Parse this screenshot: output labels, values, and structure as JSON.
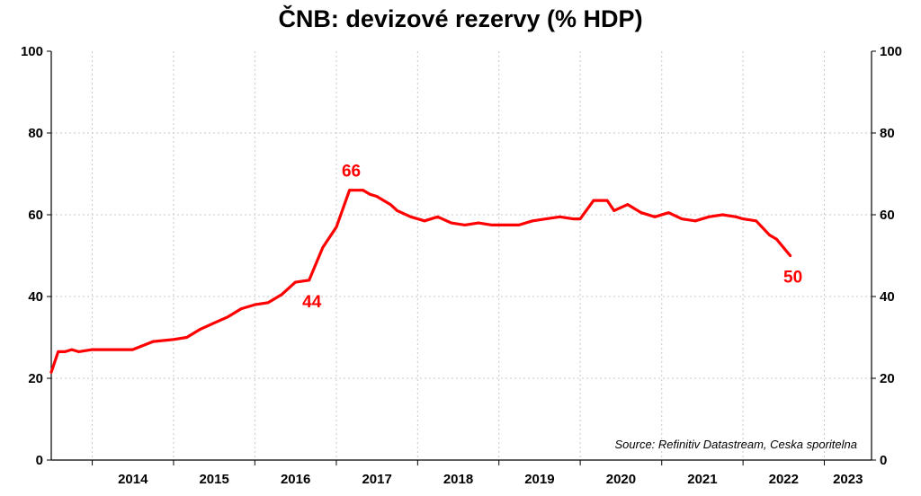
{
  "chart_data": {
    "type": "line",
    "title": "ČNB: devizové rezervy (% HDP)",
    "ylim": [
      0,
      100
    ],
    "yticks": [
      0,
      20,
      40,
      60,
      80,
      100
    ],
    "xlim": [
      "2013-07-01",
      "2023-08-01"
    ],
    "xtick_labels": [
      "2014",
      "2015",
      "2016",
      "2017",
      "2018",
      "2019",
      "2020",
      "2021",
      "2022",
      "2023"
    ],
    "grid": true,
    "line_color": "#ff0000",
    "series": [
      {
        "name": "",
        "x": [
          "2013-07-01",
          "2013-08-01",
          "2013-09-01",
          "2013-10-01",
          "2013-11-01",
          "2014-01-01",
          "2014-04-01",
          "2014-07-01",
          "2014-10-01",
          "2015-01-01",
          "2015-03-01",
          "2015-05-01",
          "2015-07-01",
          "2015-09-01",
          "2015-11-01",
          "2016-01-01",
          "2016-03-01",
          "2016-05-01",
          "2016-07-01",
          "2016-09-01",
          "2016-11-01",
          "2017-01-01",
          "2017-03-01",
          "2017-05-01",
          "2017-06-01",
          "2017-07-01",
          "2017-08-01",
          "2017-09-01",
          "2017-10-01",
          "2017-12-01",
          "2018-02-01",
          "2018-04-01",
          "2018-06-01",
          "2018-08-01",
          "2018-10-01",
          "2018-12-01",
          "2019-02-01",
          "2019-04-01",
          "2019-06-01",
          "2019-08-01",
          "2019-10-01",
          "2019-12-01",
          "2020-01-01",
          "2020-03-01",
          "2020-05-01",
          "2020-06-01",
          "2020-08-01",
          "2020-10-01",
          "2020-12-01",
          "2021-02-01",
          "2021-04-01",
          "2021-06-01",
          "2021-08-01",
          "2021-10-01",
          "2021-12-01",
          "2022-01-01",
          "2022-03-01",
          "2022-05-01",
          "2022-06-01",
          "2022-08-01"
        ],
        "y": [
          21.5,
          26.5,
          26.5,
          27,
          26.5,
          27,
          27,
          27,
          29,
          29.5,
          30,
          32,
          33.5,
          35,
          37,
          38,
          38.5,
          40.5,
          43.5,
          44,
          52,
          57,
          66,
          66,
          65,
          64.5,
          63.5,
          62.5,
          61,
          59.5,
          58.5,
          59.5,
          58,
          57.5,
          58,
          57.5,
          57.5,
          57.5,
          58.5,
          59,
          59.5,
          59,
          59,
          63.5,
          63.5,
          61,
          62.5,
          60.5,
          59.5,
          60.5,
          59,
          58.5,
          59.5,
          60,
          59.5,
          59,
          58.5,
          55,
          54,
          50
        ]
      }
    ],
    "annotations": [
      {
        "label": "66",
        "x": "2017-03-01",
        "y": 66
      },
      {
        "label": "44",
        "x": "2016-09-01",
        "y": 44
      },
      {
        "label": "50",
        "x": "2022-08-01",
        "y": 50
      }
    ],
    "source": "Source: Refinitiv Datastream, Ceska sporitelna"
  }
}
